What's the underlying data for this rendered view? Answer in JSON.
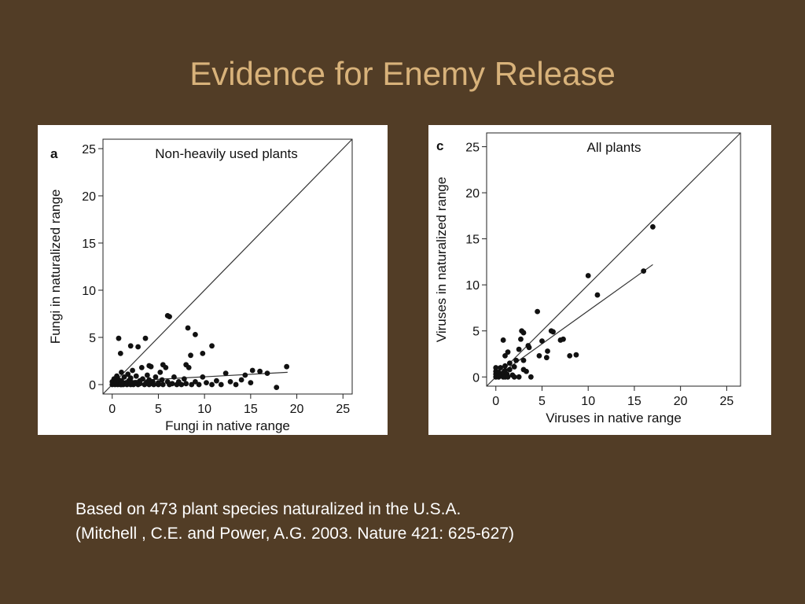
{
  "slide": {
    "title": "Evidence for Enemy Release",
    "caption_line1": "Based on 473 plant species naturalized in the U.S.A.",
    "caption_line2": "(Mitchell , C.E. and Power, A.G. 2003. Nature 421: 625-627)"
  },
  "chart_data": [
    {
      "type": "scatter",
      "panel_label": "a",
      "title": "Non-heavily used plants",
      "xlabel": "Fungi in native range",
      "ylabel": "Fungi in naturalized range",
      "xlim": [
        -1,
        26
      ],
      "ylim": [
        -1,
        26
      ],
      "xticks": [
        0,
        5,
        10,
        15,
        20,
        25
      ],
      "yticks": [
        0,
        5,
        10,
        15,
        20,
        25
      ],
      "grid": false,
      "reference_line": {
        "type": "1:1",
        "from": [
          -1,
          -1
        ],
        "to": [
          26,
          26
        ]
      },
      "fit_line": {
        "from": [
          0,
          0.3
        ],
        "to": [
          19,
          1.3
        ]
      },
      "series": [
        {
          "points": [
            [
              0,
              0
            ],
            [
              0,
              0.3
            ],
            [
              0.2,
              0.6
            ],
            [
              0.3,
              0
            ],
            [
              0.4,
              0.3
            ],
            [
              0.5,
              0.9
            ],
            [
              0.6,
              0
            ],
            [
              0.7,
              0.5
            ],
            [
              0.8,
              0.2
            ],
            [
              0.9,
              0
            ],
            [
              1,
              0
            ],
            [
              1,
              0.4
            ],
            [
              1,
              1.3
            ],
            [
              1.2,
              0
            ],
            [
              1.3,
              0.8
            ],
            [
              1.5,
              0.2
            ],
            [
              1.6,
              0
            ],
            [
              1.7,
              1.1
            ],
            [
              1.8,
              0.4
            ],
            [
              2,
              0
            ],
            [
              2,
              0.3
            ],
            [
              2,
              0.7
            ],
            [
              2.2,
              1.5
            ],
            [
              2.3,
              0
            ],
            [
              2.5,
              0.2
            ],
            [
              2.6,
              0.9
            ],
            [
              2.8,
              0
            ],
            [
              3,
              0.4
            ],
            [
              3,
              0.1
            ],
            [
              3.2,
              1.8
            ],
            [
              3.3,
              0.6
            ],
            [
              3.5,
              0
            ],
            [
              3.7,
              0.2
            ],
            [
              3.8,
              1
            ],
            [
              4,
              0
            ],
            [
              4,
              0.5
            ],
            [
              4.2,
              1.9
            ],
            [
              4.4,
              0.3
            ],
            [
              4.5,
              0
            ],
            [
              4.7,
              0.8
            ],
            [
              5,
              0
            ],
            [
              5,
              0.2
            ],
            [
              5.2,
              1.3
            ],
            [
              5.4,
              0.5
            ],
            [
              5.5,
              0
            ],
            [
              5.8,
              1.8
            ],
            [
              6,
              0.3
            ],
            [
              6.2,
              0
            ],
            [
              6.5,
              0.1
            ],
            [
              6.7,
              0.8
            ],
            [
              7,
              0
            ],
            [
              7.2,
              0.3
            ],
            [
              7.5,
              0
            ],
            [
              7.8,
              0.6
            ],
            [
              8,
              0.1
            ],
            [
              8.3,
              1.8
            ],
            [
              8.6,
              0
            ],
            [
              9,
              0.3
            ],
            [
              9.4,
              0
            ],
            [
              9.8,
              0.8
            ],
            [
              10.2,
              0.2
            ],
            [
              10.8,
              0
            ],
            [
              11.3,
              0.4
            ],
            [
              11.8,
              0
            ],
            [
              12.3,
              1.2
            ],
            [
              12.8,
              0.3
            ],
            [
              13.4,
              0
            ],
            [
              14,
              0.5
            ],
            [
              14.4,
              1
            ],
            [
              15,
              0.2
            ],
            [
              0.7,
              4.9
            ],
            [
              0.9,
              3.3
            ],
            [
              2,
              4.1
            ],
            [
              2.8,
              4
            ],
            [
              3.6,
              4.9
            ],
            [
              6,
              7.3
            ],
            [
              6.2,
              7.2
            ],
            [
              8.2,
              6
            ],
            [
              9,
              5.3
            ],
            [
              9.8,
              3.3
            ],
            [
              10.8,
              4.1
            ],
            [
              8.5,
              3.1
            ],
            [
              8,
              2.1
            ],
            [
              5.5,
              2.1
            ],
            [
              4,
              2
            ],
            [
              16,
              1.4
            ],
            [
              16.8,
              1.2
            ],
            [
              18.9,
              1.9
            ],
            [
              17.8,
              -0.3
            ],
            [
              15.2,
              1.5
            ]
          ]
        }
      ]
    },
    {
      "type": "scatter",
      "panel_label": "c",
      "title": "All plants",
      "xlabel": "Viruses in native range",
      "ylabel": "Viruses in naturalized range",
      "xlim": [
        -1,
        26.5
      ],
      "ylim": [
        -1,
        26.5
      ],
      "xticks": [
        0,
        5,
        10,
        15,
        20,
        25
      ],
      "yticks": [
        0,
        5,
        10,
        15,
        20,
        25
      ],
      "grid": false,
      "reference_line": {
        "type": "1:1",
        "from": [
          -1,
          -1
        ],
        "to": [
          26.5,
          26.5
        ]
      },
      "fit_line": {
        "from": [
          0,
          0
        ],
        "to": [
          17,
          12.2
        ]
      },
      "series": [
        {
          "points": [
            [
              0,
              0
            ],
            [
              0,
              0.3
            ],
            [
              0,
              0.6
            ],
            [
              0,
              1
            ],
            [
              0.3,
              0
            ],
            [
              0.3,
              0.5
            ],
            [
              0.5,
              0.2
            ],
            [
              0.5,
              1
            ],
            [
              0.8,
              0
            ],
            [
              0.8,
              0.4
            ],
            [
              1,
              0
            ],
            [
              1,
              0.7
            ],
            [
              1,
              1.2
            ],
            [
              1.2,
              0.3
            ],
            [
              1.3,
              0
            ],
            [
              1.5,
              0.8
            ],
            [
              1.5,
              1.5
            ],
            [
              1.8,
              0.2
            ],
            [
              2,
              0
            ],
            [
              2,
              1.1
            ],
            [
              0.8,
              4
            ],
            [
              1,
              2.3
            ],
            [
              1.3,
              2.7
            ],
            [
              2.2,
              1.8
            ],
            [
              2.5,
              3
            ],
            [
              2.7,
              4.1
            ],
            [
              2.8,
              5
            ],
            [
              3,
              4.8
            ],
            [
              3,
              1.8
            ],
            [
              3.3,
              0.6
            ],
            [
              3.5,
              3.4
            ],
            [
              3.6,
              3.2
            ],
            [
              3.8,
              0
            ],
            [
              4.5,
              7.1
            ],
            [
              4.7,
              2.3
            ],
            [
              5,
              3.9
            ],
            [
              5.5,
              2.1
            ],
            [
              5.6,
              2.8
            ],
            [
              6,
              5
            ],
            [
              6.2,
              4.9
            ],
            [
              7,
              4
            ],
            [
              7.3,
              4.1
            ],
            [
              8,
              2.3
            ],
            [
              8.7,
              2.4
            ],
            [
              10,
              11
            ],
            [
              11,
              8.9
            ],
            [
              16,
              11.5
            ],
            [
              17,
              16.3
            ],
            [
              2.5,
              0
            ],
            [
              3,
              0.8
            ]
          ]
        }
      ]
    }
  ]
}
